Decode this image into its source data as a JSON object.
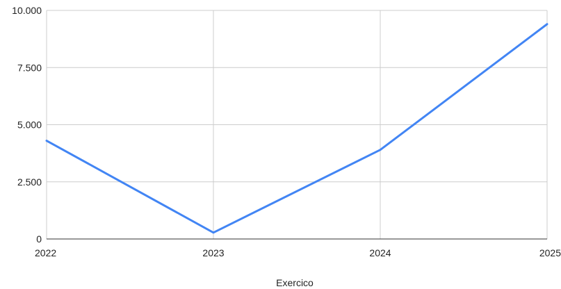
{
  "chart_data": {
    "type": "line",
    "title": "",
    "xlabel": "Exercico",
    "ylabel": "",
    "categories": [
      "2022",
      "2023",
      "2024",
      "2025"
    ],
    "series": [
      {
        "values": [
          4300,
          280,
          3900,
          9400
        ],
        "color": "#4285f4"
      }
    ],
    "ylim": [
      0,
      10000
    ],
    "yticks": [
      0,
      2500,
      5000,
      7500,
      10000
    ],
    "ytick_labels": [
      "0",
      "2.500",
      "5.000",
      "7.500",
      "10.000"
    ],
    "grid": true,
    "legend": "none"
  }
}
